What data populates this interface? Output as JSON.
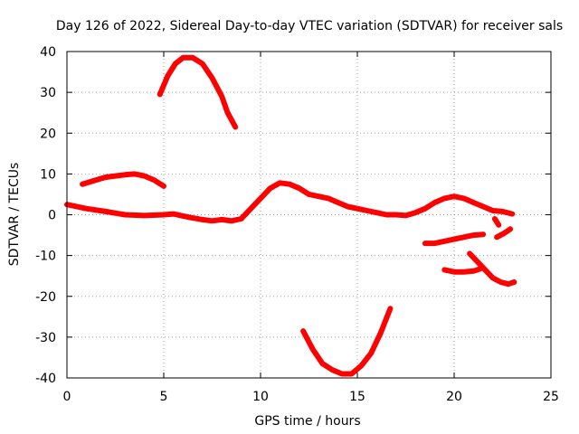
{
  "chart_data": {
    "type": "line",
    "title": "Day 126 of 2022, Sidereal Day-to-day VTEC variation (SDTVAR) for receiver sals",
    "xlabel": "GPS time / hours",
    "ylabel": "SDTVAR / TECUs",
    "xlim": [
      0,
      25
    ],
    "ylim": [
      -40,
      40
    ],
    "xticks": [
      0,
      5,
      10,
      15,
      20,
      25
    ],
    "yticks": [
      -40,
      -30,
      -20,
      -10,
      0,
      10,
      20,
      30,
      40
    ],
    "grid": true,
    "color": "#ff0000",
    "series": [
      {
        "name": "arc-01",
        "points": [
          [
            0,
            2.5
          ],
          [
            1,
            1.5
          ],
          [
            2,
            0.8
          ],
          [
            3,
            0
          ],
          [
            4,
            -0.2
          ],
          [
            5,
            0
          ],
          [
            5.5,
            0.2
          ],
          [
            6,
            -0.3
          ],
          [
            6.5,
            -0.8
          ],
          [
            7,
            -1.2
          ],
          [
            7.5,
            -1.5
          ],
          [
            8,
            -1.2
          ],
          [
            8.5,
            -1.5
          ],
          [
            9,
            -1
          ],
          [
            9.5,
            1.5
          ],
          [
            10,
            4
          ],
          [
            10.5,
            6.5
          ],
          [
            11,
            7.8
          ],
          [
            11.5,
            7.5
          ],
          [
            12,
            6.5
          ],
          [
            12.5,
            5
          ],
          [
            13,
            4.5
          ],
          [
            13.5,
            4
          ],
          [
            14,
            3
          ],
          [
            14.5,
            2
          ],
          [
            15,
            1.5
          ],
          [
            15.5,
            1
          ],
          [
            16,
            0.5
          ],
          [
            16.5,
            0
          ],
          [
            17,
            0
          ],
          [
            17.5,
            -0.2
          ],
          [
            18,
            0.5
          ],
          [
            18.5,
            1.5
          ],
          [
            19,
            3
          ],
          [
            19.5,
            4
          ],
          [
            20,
            4.5
          ],
          [
            20.5,
            4
          ],
          [
            21,
            3
          ],
          [
            21.5,
            2
          ],
          [
            22,
            1
          ],
          [
            22.5,
            0.8
          ],
          [
            23,
            0.2
          ]
        ]
      },
      {
        "name": "arc-02",
        "points": [
          [
            0.8,
            7.5
          ],
          [
            1.5,
            8.5
          ],
          [
            2,
            9.2
          ],
          [
            2.5,
            9.5
          ],
          [
            3,
            9.8
          ],
          [
            3.5,
            10
          ],
          [
            4,
            9.5
          ],
          [
            4.5,
            8.5
          ],
          [
            5,
            7
          ]
        ]
      },
      {
        "name": "arc-03",
        "points": [
          [
            4.8,
            29.5
          ],
          [
            5.2,
            34
          ],
          [
            5.6,
            37
          ],
          [
            6,
            38.5
          ],
          [
            6.5,
            38.5
          ],
          [
            7,
            37
          ],
          [
            7.5,
            33.5
          ],
          [
            8,
            29
          ],
          [
            8.3,
            25
          ],
          [
            8.7,
            21.5
          ]
        ]
      },
      {
        "name": "arc-04",
        "points": [
          [
            12.2,
            -28.5
          ],
          [
            12.7,
            -33
          ],
          [
            13.2,
            -36.5
          ],
          [
            13.7,
            -38
          ],
          [
            14.2,
            -39
          ],
          [
            14.7,
            -39
          ],
          [
            15.2,
            -37
          ],
          [
            15.7,
            -34
          ],
          [
            16.2,
            -29
          ],
          [
            16.7,
            -23
          ]
        ]
      },
      {
        "name": "arc-05",
        "points": [
          [
            18.5,
            -7
          ],
          [
            19,
            -7
          ],
          [
            19.5,
            -6.5
          ],
          [
            20,
            -6
          ],
          [
            20.5,
            -5.5
          ],
          [
            21,
            -5
          ],
          [
            21.5,
            -4.8
          ]
        ]
      },
      {
        "name": "arc-06",
        "points": [
          [
            19.5,
            -13.5
          ],
          [
            20,
            -14
          ],
          [
            20.5,
            -14
          ],
          [
            21,
            -13.8
          ],
          [
            21.5,
            -13
          ]
        ]
      },
      {
        "name": "arc-07",
        "points": [
          [
            20.8,
            -9.5
          ],
          [
            21.2,
            -11.5
          ],
          [
            21.6,
            -13.5
          ],
          [
            22,
            -15.5
          ],
          [
            22.4,
            -16.5
          ],
          [
            22.8,
            -17
          ],
          [
            23.1,
            -16.5
          ]
        ]
      },
      {
        "name": "arc-08",
        "points": [
          [
            22.2,
            -5.5
          ],
          [
            22.6,
            -4.5
          ],
          [
            22.9,
            -3.5
          ]
        ]
      },
      {
        "name": "arc-09",
        "points": [
          [
            22.1,
            -1
          ],
          [
            22.3,
            -2.5
          ]
        ]
      }
    ]
  }
}
